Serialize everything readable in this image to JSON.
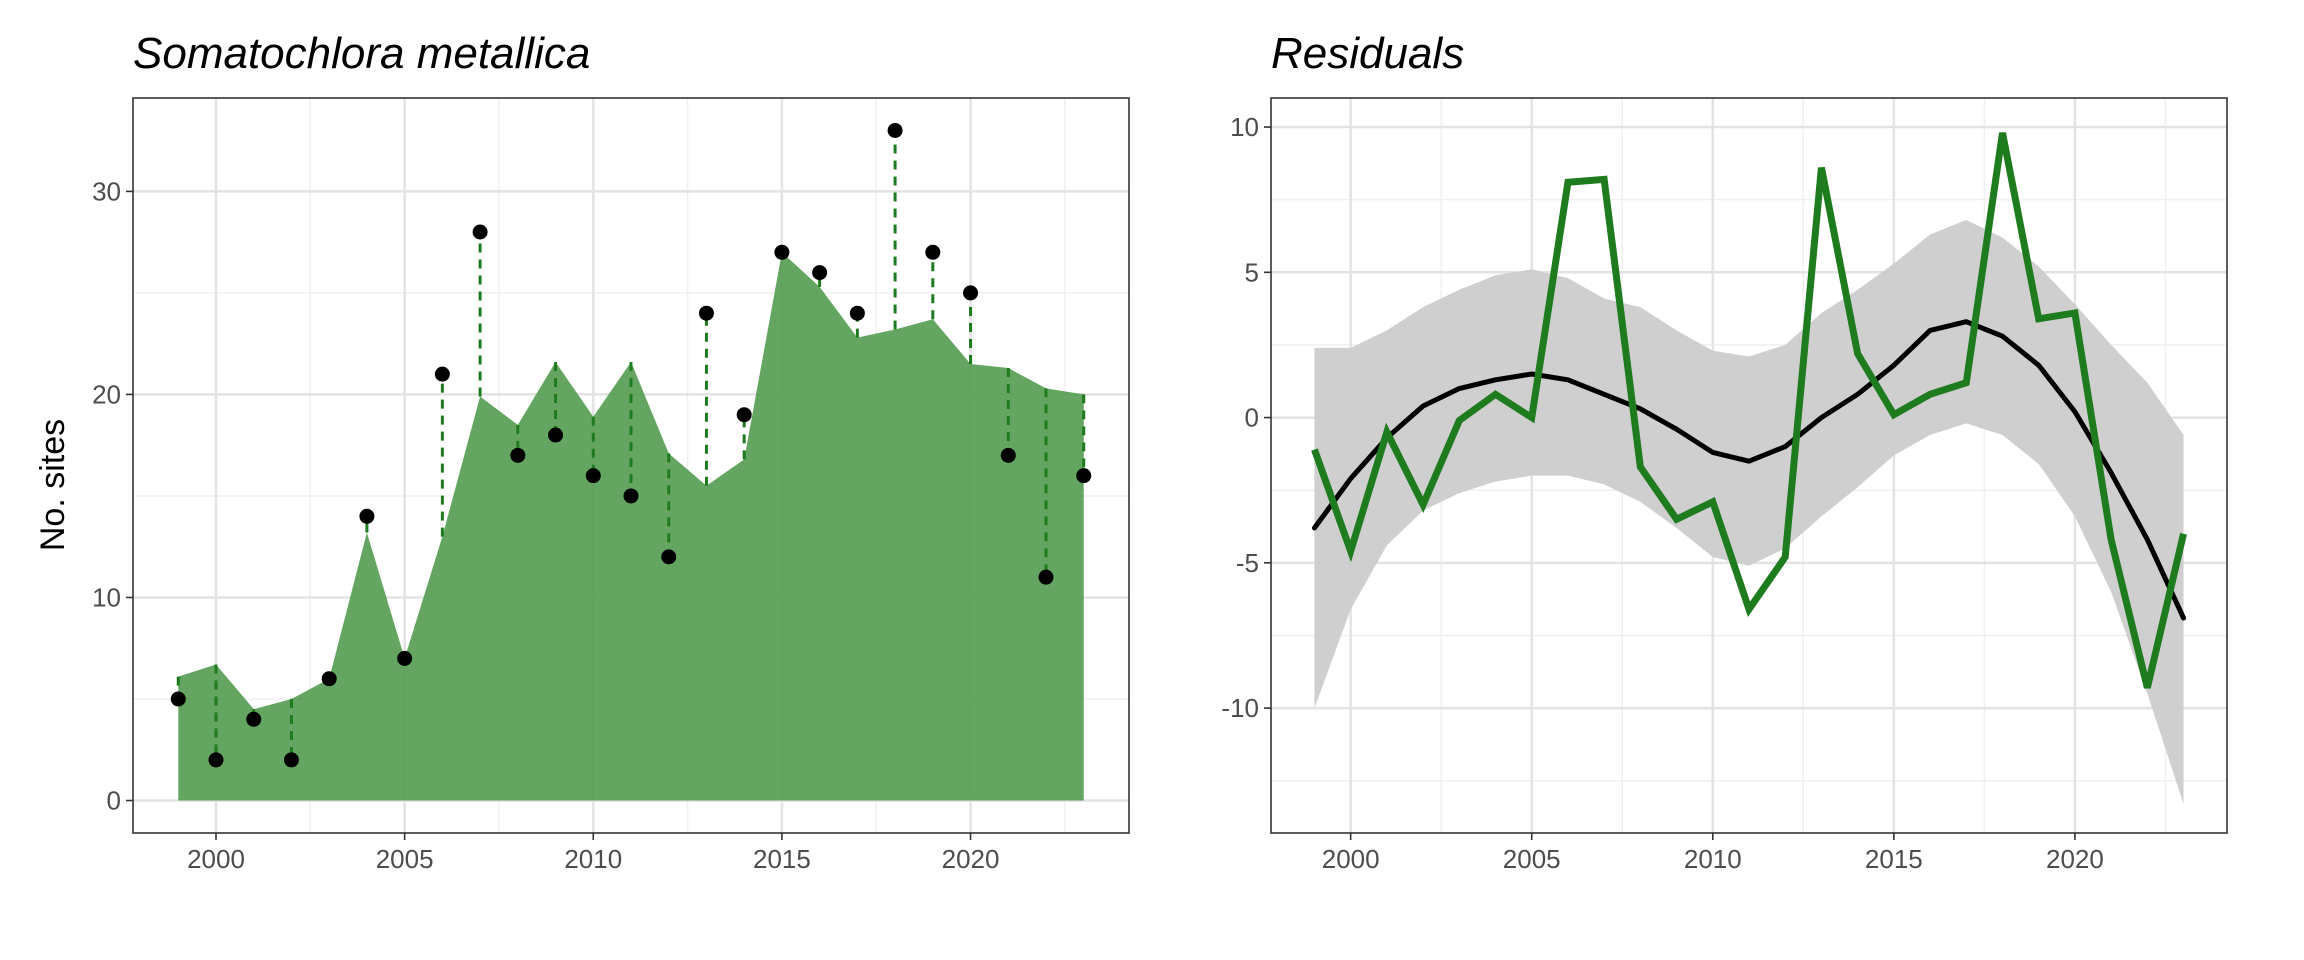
{
  "colors": {
    "area_fill": "#4f9a4b",
    "line_green": "#1e7b1e",
    "points": "#000000",
    "ribbon": "#cccccc",
    "smooth": "#000000",
    "grid_major": "#e3e3e3",
    "grid_minor": "#f0f0f0",
    "panel_border": "#333333"
  },
  "chart_data": [
    {
      "type": "area",
      "title": "Somatochlora metallica",
      "xlabel": "",
      "ylabel": "No. sites",
      "xlim": [
        1997.8,
        2024.2
      ],
      "ylim": [
        -1.6,
        34.6
      ],
      "x_ticks": [
        2000,
        2005,
        2010,
        2015,
        2020
      ],
      "y_ticks": [
        0,
        10,
        20,
        30
      ],
      "grid": true,
      "x": [
        1999,
        2000,
        2001,
        2002,
        2003,
        2004,
        2005,
        2006,
        2007,
        2008,
        2009,
        2010,
        2011,
        2012,
        2013,
        2014,
        2015,
        2016,
        2017,
        2018,
        2019,
        2020,
        2021,
        2022,
        2023
      ],
      "series": [
        {
          "values": [
            6.1,
            6.7,
            4.5,
            5.0,
            6.0,
            13.2,
            7.0,
            13.0,
            19.9,
            18.5,
            21.6,
            18.9,
            21.6,
            17.1,
            15.5,
            16.8,
            27.0,
            25.3,
            22.8,
            23.2,
            23.7,
            21.5,
            21.3,
            20.3,
            20.0
          ]
        },
        {
          "values": [
            5,
            2,
            4,
            2,
            6,
            14,
            7,
            21,
            28,
            17,
            18,
            16,
            15,
            12,
            24,
            19,
            27,
            26,
            24,
            33,
            27,
            25,
            17,
            11,
            16
          ]
        }
      ]
    },
    {
      "type": "line",
      "title": "Residuals",
      "xlabel": "",
      "ylabel": "",
      "xlim": [
        1997.8,
        2024.2
      ],
      "ylim": [
        -14.3,
        11.0
      ],
      "x_ticks": [
        2000,
        2005,
        2010,
        2015,
        2020
      ],
      "y_ticks": [
        -10,
        -5,
        0,
        5,
        10
      ],
      "grid": true,
      "x": [
        1999,
        2000,
        2001,
        2002,
        2003,
        2004,
        2005,
        2006,
        2007,
        2008,
        2009,
        2010,
        2011,
        2012,
        2013,
        2014,
        2015,
        2016,
        2017,
        2018,
        2019,
        2020,
        2021,
        2022,
        2023
      ],
      "series": [
        {
          "values": [
            -1.1,
            -4.6,
            -0.5,
            -3.0,
            -0.1,
            0.8,
            0.0,
            8.1,
            8.2,
            -1.7,
            -3.5,
            -2.9,
            -6.6,
            -4.8,
            8.6,
            2.2,
            0.1,
            0.8,
            1.2,
            9.8,
            3.4,
            3.6,
            -4.2,
            -9.3,
            -4.0
          ]
        },
        {
          "values": [
            -3.8,
            -2.1,
            -0.7,
            0.4,
            1.0,
            1.3,
            1.5,
            1.3,
            0.8,
            0.3,
            -0.4,
            -1.2,
            -1.5,
            -1.0,
            0.0,
            0.8,
            1.8,
            3.0,
            3.3,
            2.8,
            1.8,
            0.2,
            -1.9,
            -4.2,
            -6.9
          ]
        }
      ],
      "band_x": [
        1999,
        2000,
        2001,
        2002,
        2003,
        2004,
        2005,
        2006,
        2007,
        2008,
        2009,
        2010,
        2011,
        2012,
        2013,
        2014,
        2015,
        2016,
        2017,
        2018,
        2019,
        2020,
        2021,
        2022,
        2023
      ],
      "band_lower": [
        -10.0,
        -6.6,
        -4.4,
        -3.2,
        -2.6,
        -2.2,
        -2.0,
        -2.0,
        -2.3,
        -2.9,
        -3.8,
        -4.8,
        -5.1,
        -4.5,
        -3.4,
        -2.4,
        -1.3,
        -0.6,
        -0.2,
        -0.6,
        -1.6,
        -3.4,
        -6.0,
        -9.5,
        -13.3
      ],
      "band_upper": [
        2.4,
        2.4,
        3.0,
        3.8,
        4.4,
        4.9,
        5.1,
        4.8,
        4.1,
        3.8,
        3.0,
        2.3,
        2.1,
        2.5,
        3.6,
        4.4,
        5.3,
        6.3,
        6.8,
        6.2,
        5.2,
        3.9,
        2.5,
        1.2,
        -0.6
      ]
    }
  ]
}
